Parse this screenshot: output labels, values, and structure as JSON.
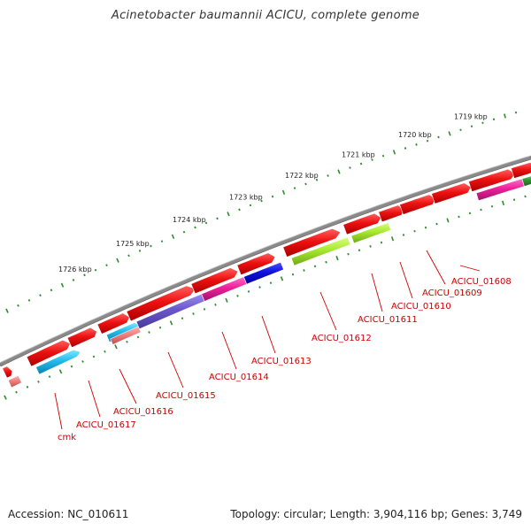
{
  "title": "Acinetobacter baumannii ACICU, complete genome",
  "footer": {
    "accession": "Accession: NC_010611",
    "topology": "Topology: circular; Length: 3,904,116 bp; Genes: 3,749"
  },
  "colors": {
    "backbone": "#8a8a8a",
    "tick": "#2e8b2e",
    "label": "#cc0000",
    "forward_gene": "#ee1111"
  },
  "scale_labels": [
    "1719 kbp",
    "1720 kbp",
    "1721 kbp",
    "1722 kbp",
    "1723 kbp",
    "1724 kbp",
    "1725 kbp",
    "1726 kbp"
  ],
  "gene_labels": [
    "ACICU_01608",
    "ACICU_01609",
    "ACICU_01610",
    "ACICU_01611",
    "ACICU_01612",
    "ACICU_01613",
    "ACICU_01614",
    "ACICU_01615",
    "ACICU_01616",
    "ACICU_01617",
    "cmk"
  ]
}
